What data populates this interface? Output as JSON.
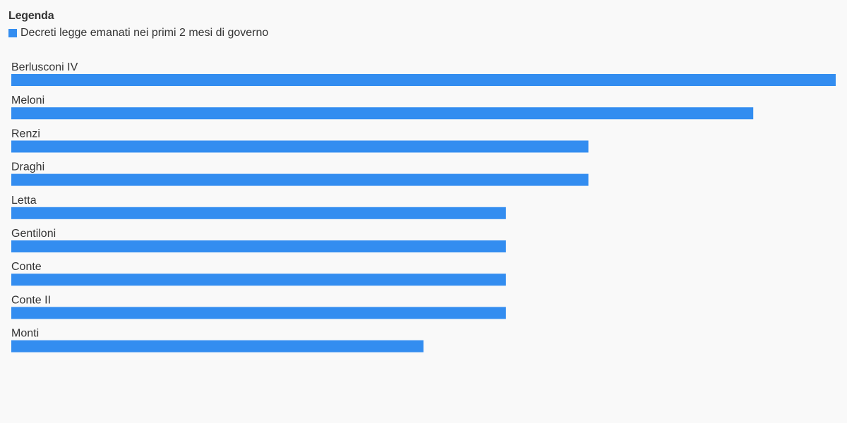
{
  "legend": {
    "title": "Legenda",
    "series_label": "Decreti legge emanati nei primi 2 mesi di governo"
  },
  "colors": {
    "bar": "#338df0",
    "background": "#f9f9f9",
    "text": "#333333"
  },
  "chart_data": {
    "type": "bar",
    "orientation": "horizontal",
    "categories": [
      "Berlusconi IV",
      "Meloni",
      "Renzi",
      "Draghi",
      "Letta",
      "Gentiloni",
      "Conte",
      "Conte II",
      "Monti"
    ],
    "series": [
      {
        "name": "Decreti legge emanati nei primi 2 mesi di governo",
        "values": [
          10,
          9,
          7,
          7,
          6,
          6,
          6,
          6,
          5
        ]
      }
    ],
    "xlim": [
      0,
      10
    ],
    "grid": false,
    "legend_position": "top-left"
  }
}
